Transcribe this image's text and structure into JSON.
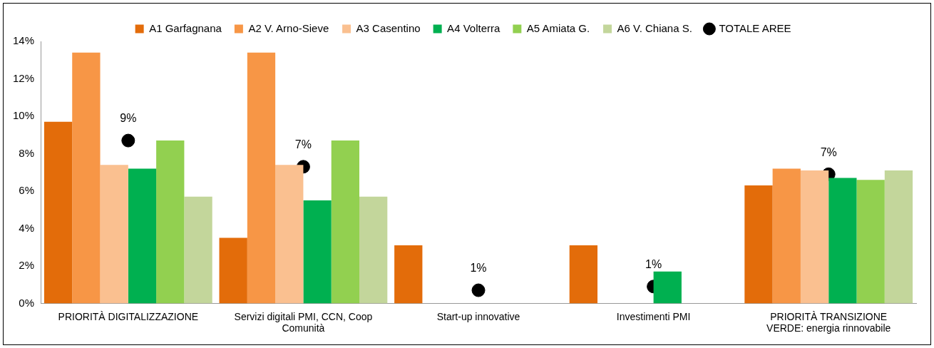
{
  "chart_data": {
    "type": "bar",
    "categories": [
      "PRIORITÀ DIGITALIZZAZIONE",
      "Servizi digitali PMI, CCN, Coop Comunità",
      "Start-up innovative",
      "Investimenti PMI",
      "PRIORITÀ TRANSIZIONE VERDE: energia rinnovabile"
    ],
    "series": [
      {
        "name": "A1 Garfagnana",
        "color": "#e36c0a",
        "values": [
          9.7,
          3.5,
          3.1,
          3.1,
          6.3
        ]
      },
      {
        "name": "A2 V. Arno-Sieve",
        "color": "#f79646",
        "values": [
          13.4,
          13.4,
          null,
          null,
          7.2
        ]
      },
      {
        "name": "A3 Casentino",
        "color": "#fac090",
        "values": [
          7.4,
          7.4,
          null,
          null,
          7.1
        ]
      },
      {
        "name": "A4 Volterra",
        "color": "#00b050",
        "values": [
          7.2,
          5.5,
          null,
          1.7,
          6.7
        ]
      },
      {
        "name": "A5 Amiata G.",
        "color": "#92d050",
        "values": [
          8.7,
          8.7,
          null,
          null,
          6.6
        ]
      },
      {
        "name": "A6 V. Chiana S.",
        "color": "#c3d69b",
        "values": [
          5.7,
          5.7,
          null,
          null,
          7.1
        ]
      },
      {
        "name": "TOTALE AREE",
        "type": "scatter",
        "color": "#000000",
        "x": [
          "PRIORITÀ DIGITALIZZAZIONE",
          "Servizi digitali PMI, CCN, Coop Comunità",
          "Start-up innovative",
          "Investimenti PMI",
          "PRIORITÀ TRANSIZIONE VERDE: energia rinnovabile"
        ],
        "values": [
          8.7,
          7.3,
          0.7,
          0.9,
          6.9
        ],
        "value_labels": [
          "9%",
          "7%",
          "1%",
          "1%",
          "7%"
        ],
        "marker": "circle"
      }
    ],
    "ylim": [
      0,
      14
    ],
    "yticks": [
      {
        "value": 0,
        "label": "0%"
      },
      {
        "value": 2,
        "label": "2%"
      },
      {
        "value": 4,
        "label": "4%"
      },
      {
        "value": 6,
        "label": "6%"
      },
      {
        "value": 8,
        "label": "8%"
      },
      {
        "value": 10,
        "label": "10%"
      },
      {
        "value": 12,
        "label": "12%"
      },
      {
        "value": 14,
        "label": "14%"
      }
    ],
    "grid": false,
    "legend": "top"
  }
}
